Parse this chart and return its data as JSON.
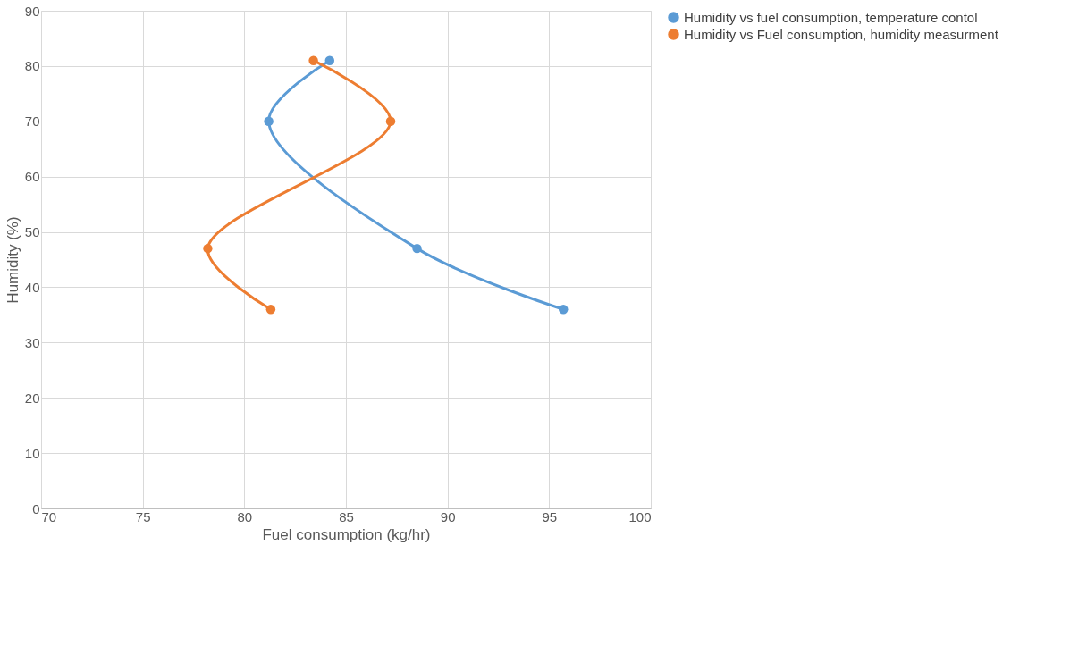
{
  "chart_data": {
    "type": "line",
    "xlabel": "Fuel consumption (kg/hr)",
    "ylabel": "Humidity (%)",
    "xlim": [
      70,
      100
    ],
    "xticks": [
      70,
      75,
      80,
      85,
      90,
      95,
      100
    ],
    "ylim": [
      0,
      90
    ],
    "yticks": [
      0,
      10,
      20,
      30,
      40,
      50,
      60,
      70,
      80,
      90
    ],
    "grid": true,
    "legend": "right",
    "marker": "circle",
    "line_style": "solid",
    "series": [
      {
        "name": "Humidity vs fuel consumption, temperature contol",
        "color": "#5b9bd5",
        "x": [
          95.7,
          88.5,
          81.2,
          84.2
        ],
        "values": [
          36,
          47,
          70,
          81
        ]
      },
      {
        "name": "Humidity vs Fuel consumption, humidity measurment",
        "color": "#ed7d31",
        "x": [
          81.3,
          78.2,
          87.2,
          83.4
        ],
        "values": [
          36,
          47,
          70,
          81
        ]
      }
    ]
  }
}
